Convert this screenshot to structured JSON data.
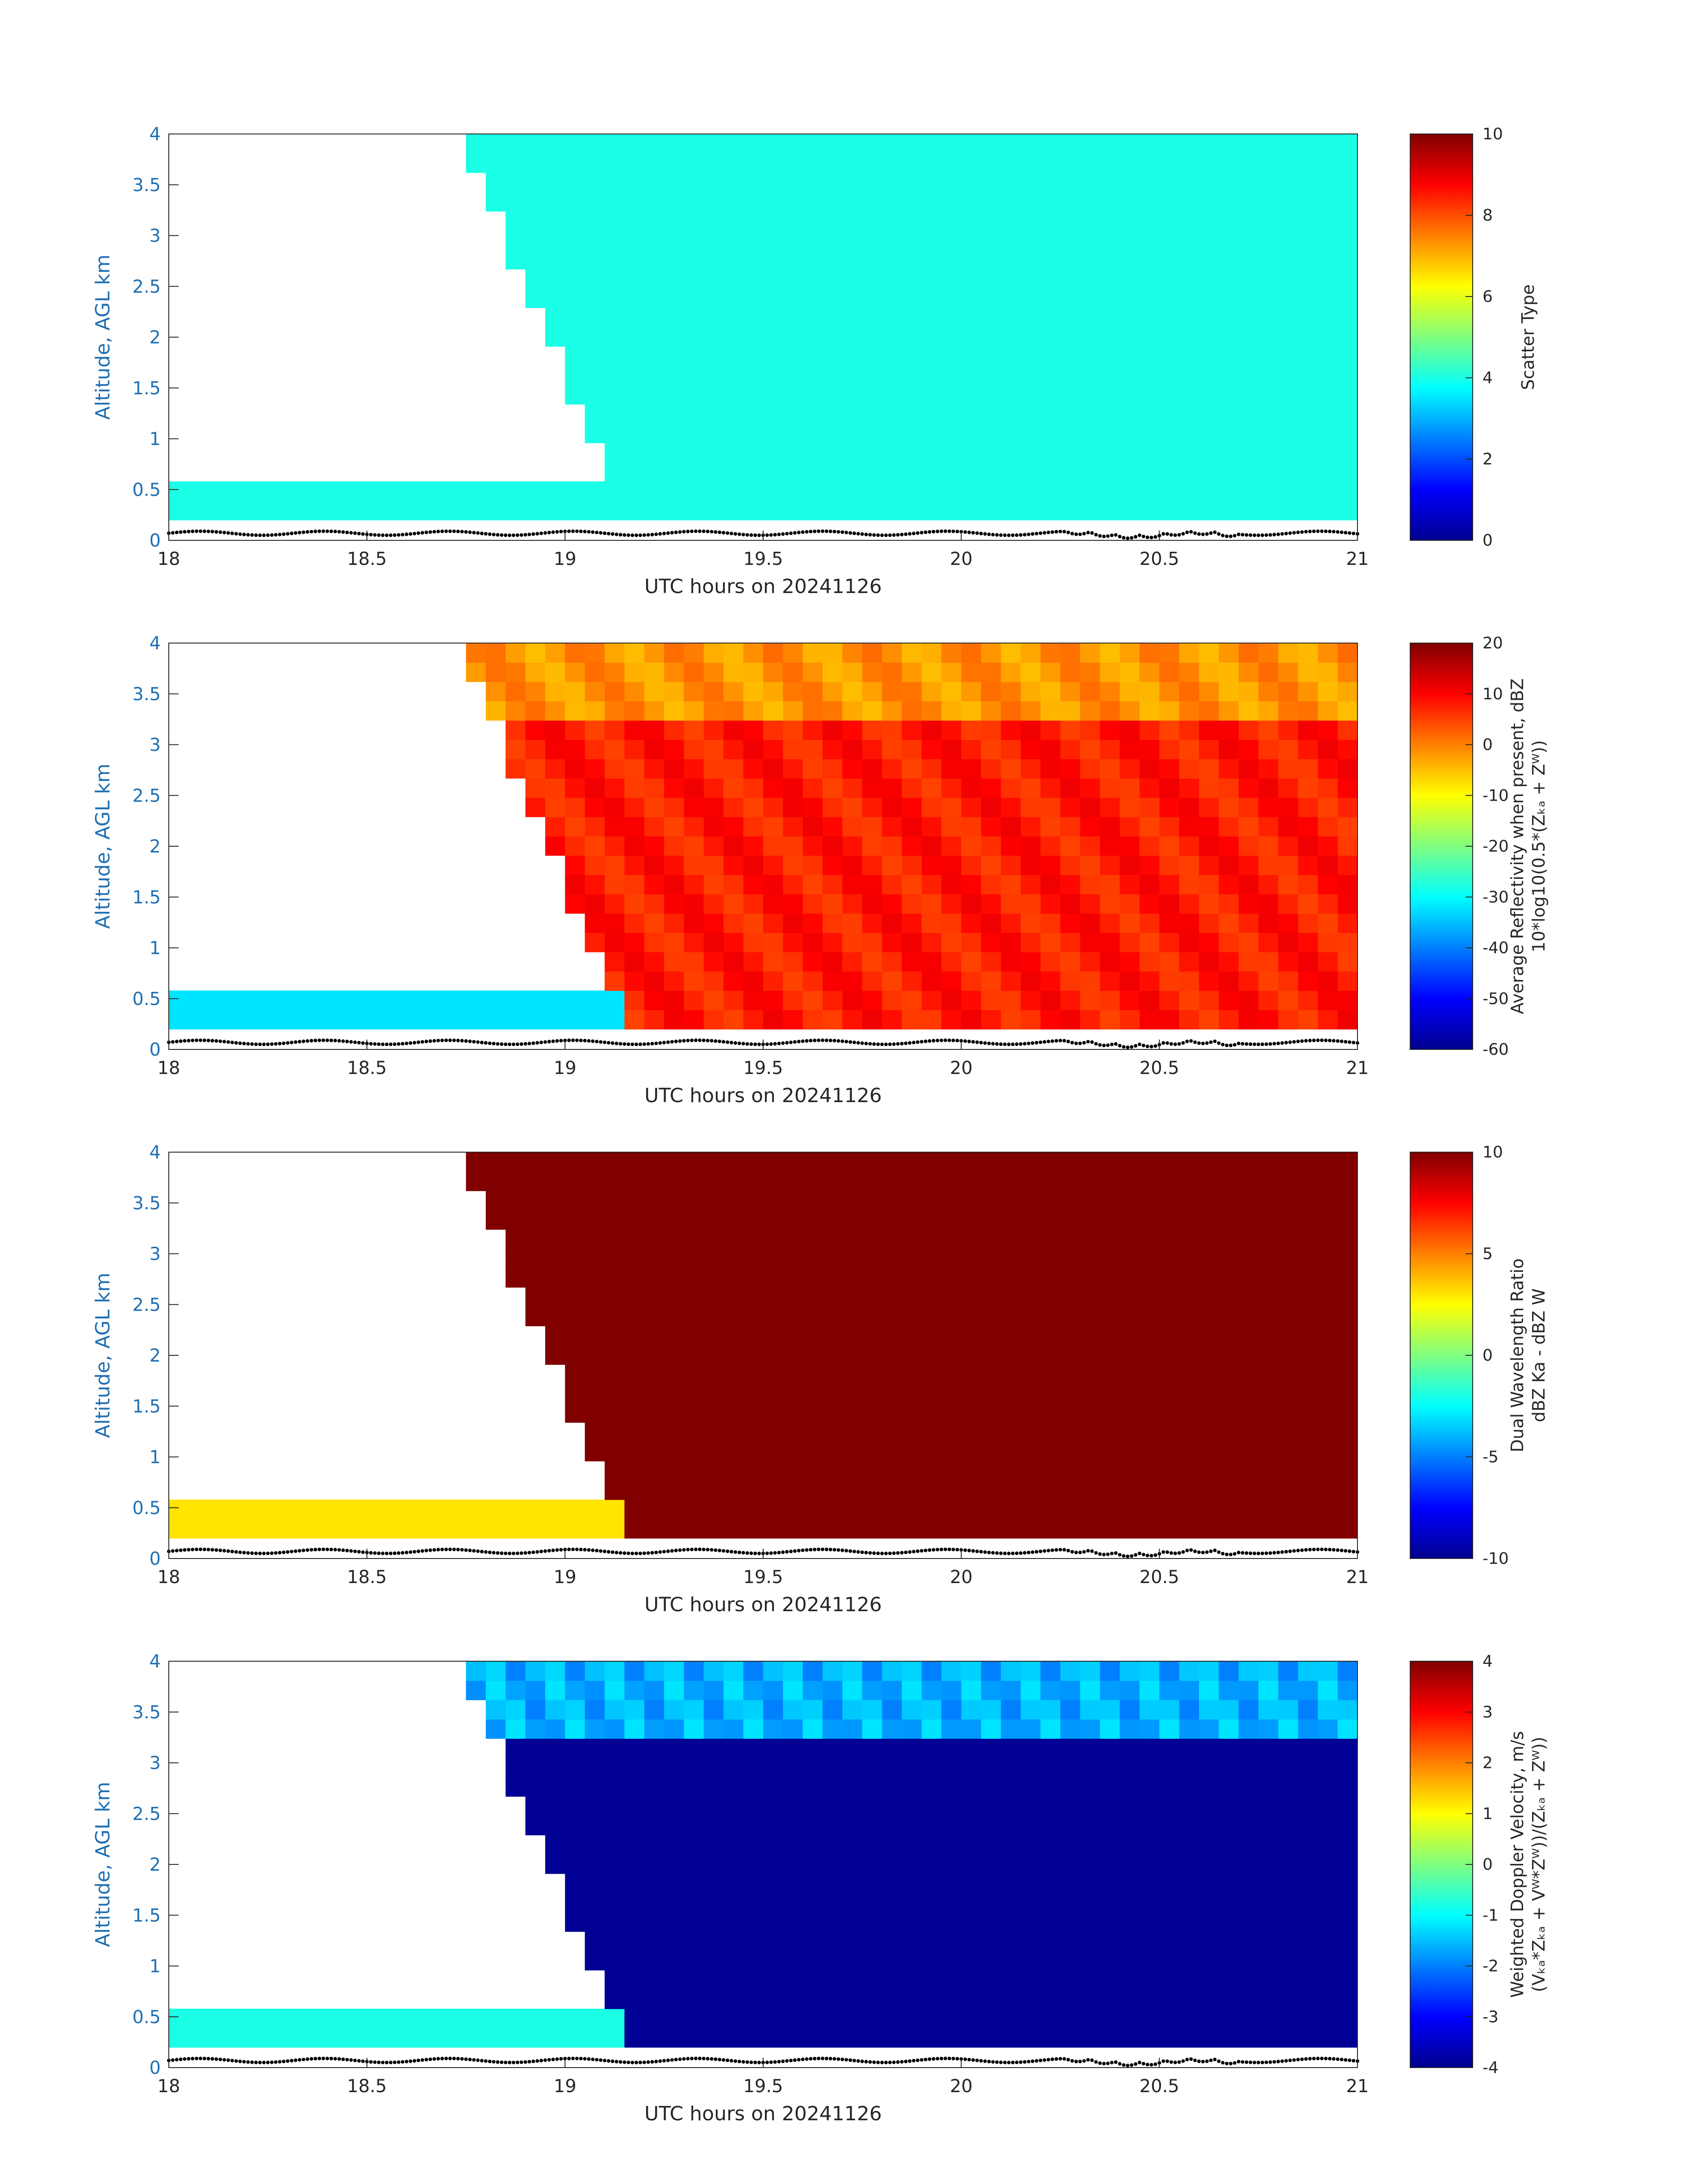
{
  "chart_data": [
    {
      "type": "heatmap",
      "field": "scatter_type",
      "xlabel": "UTC hours on 20241126",
      "ylabel": "Altitude, AGL km",
      "xlim": [
        18,
        21
      ],
      "ylim": [
        0,
        4
      ],
      "xticks": [
        "18",
        "18.5",
        "19",
        "19.5",
        "20",
        "20.5",
        "21"
      ],
      "yticks": [
        "0",
        "0.5",
        "1",
        "1.5",
        "2",
        "2.5",
        "3",
        "3.5",
        "4"
      ],
      "colorbar": {
        "label_lines": [
          "Scatter Type"
        ],
        "ticks": [
          "0",
          "2",
          "4",
          "6",
          "8",
          "10"
        ],
        "range": [
          0,
          10
        ]
      },
      "value_description": "uniform scatter type ~4 (cyan) in cloud region",
      "typical_value": 4
    },
    {
      "type": "heatmap",
      "field": "average_reflectivity",
      "xlabel": "UTC hours on 20241126",
      "ylabel": "Altitude, AGL km",
      "xlim": [
        18,
        21
      ],
      "ylim": [
        0,
        4
      ],
      "xticks": [
        "18",
        "18.5",
        "19",
        "19.5",
        "20",
        "20.5",
        "21"
      ],
      "yticks": [
        "0",
        "0.5",
        "1",
        "1.5",
        "2",
        "2.5",
        "3",
        "3.5",
        "4"
      ],
      "colorbar": {
        "label_lines": [
          "Average Reflectivity when present, dBZ",
          "10*log10(0.5*(Zₖₐ + Zᵂ))"
        ],
        "ticks": [
          "-60",
          "-50",
          "-40",
          "-30",
          "-20",
          "-10",
          "0",
          "10",
          "20"
        ],
        "range": [
          -60,
          20
        ]
      },
      "typical_value": 10
    },
    {
      "type": "heatmap",
      "field": "dual_wavelength_ratio",
      "xlabel": "UTC hours on 20241126",
      "ylabel": "Altitude, AGL km",
      "xlim": [
        18,
        21
      ],
      "ylim": [
        0,
        4
      ],
      "xticks": [
        "18",
        "18.5",
        "19",
        "19.5",
        "20",
        "20.5",
        "21"
      ],
      "yticks": [
        "0",
        "0.5",
        "1",
        "1.5",
        "2",
        "2.5",
        "3",
        "3.5",
        "4"
      ],
      "colorbar": {
        "label_lines": [
          "Dual Wavelength Ratio",
          "dBZ Ka - dBZ W"
        ],
        "ticks": [
          "-10",
          "-5",
          "0",
          "5",
          "10"
        ],
        "range": [
          -10,
          10
        ]
      },
      "typical_value": 10
    },
    {
      "type": "heatmap",
      "field": "weighted_doppler_velocity",
      "xlabel": "UTC hours on 20241126",
      "ylabel": "Altitude, AGL km",
      "xlim": [
        18,
        21
      ],
      "ylim": [
        0,
        4
      ],
      "xticks": [
        "18",
        "18.5",
        "19",
        "19.5",
        "20",
        "20.5",
        "21"
      ],
      "yticks": [
        "0",
        "0.5",
        "1",
        "1.5",
        "2",
        "2.5",
        "3",
        "3.5",
        "4"
      ],
      "colorbar": {
        "label_lines": [
          "Weighted Doppler Velocity, m/s",
          "(Vₖₐ*Zₖₐ + Vᵂ*Zᵂ))/(Zₖₐ + Zᵂ))"
        ],
        "ticks": [
          "-4",
          "-3",
          "-2",
          "-1",
          "0",
          "1",
          "2",
          "3",
          "4"
        ],
        "range": [
          -4,
          4
        ]
      },
      "typical_value": -4
    }
  ],
  "colors": {
    "axis_text": "#262626",
    "ylabel_text": "#1f6fb2",
    "cyan": "#1cffd8",
    "dark_red": "#7f0000",
    "red": "#e31a00",
    "dark_blue": "#0000a8",
    "ground_dots": "#000000"
  }
}
